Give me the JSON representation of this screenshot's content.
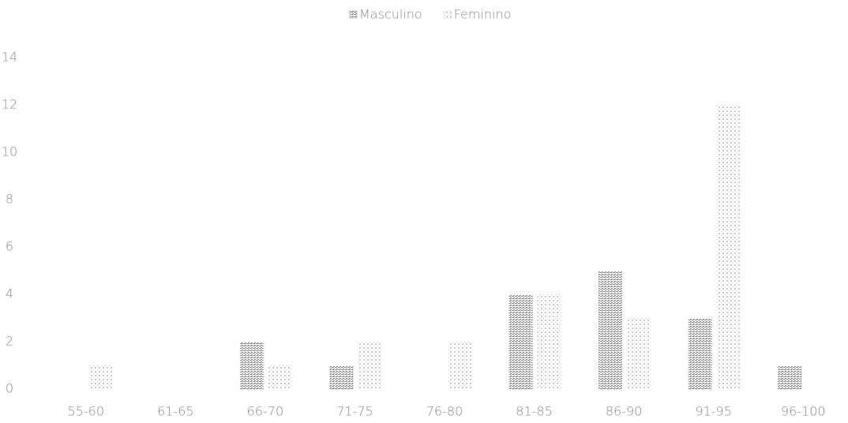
{
  "chart_data": {
    "type": "bar",
    "categories": [
      "55-60",
      "61-65",
      "66-70",
      "71-75",
      "76-80",
      "81-85",
      "86-90",
      "91-95",
      "96-100"
    ],
    "series": [
      {
        "name": "Masculino",
        "color": "#8c8c8c",
        "values": [
          0,
          0,
          2,
          1,
          0,
          4,
          5,
          3,
          1
        ]
      },
      {
        "name": "Feminino",
        "color": "#c8c8c8",
        "values": [
          1,
          0,
          1,
          2,
          2,
          4,
          3,
          12,
          0
        ]
      }
    ],
    "ylim": [
      0,
      14
    ],
    "yticks": [
      0,
      2,
      4,
      6,
      8,
      10,
      12,
      14
    ],
    "grid": false,
    "legend": "top"
  }
}
